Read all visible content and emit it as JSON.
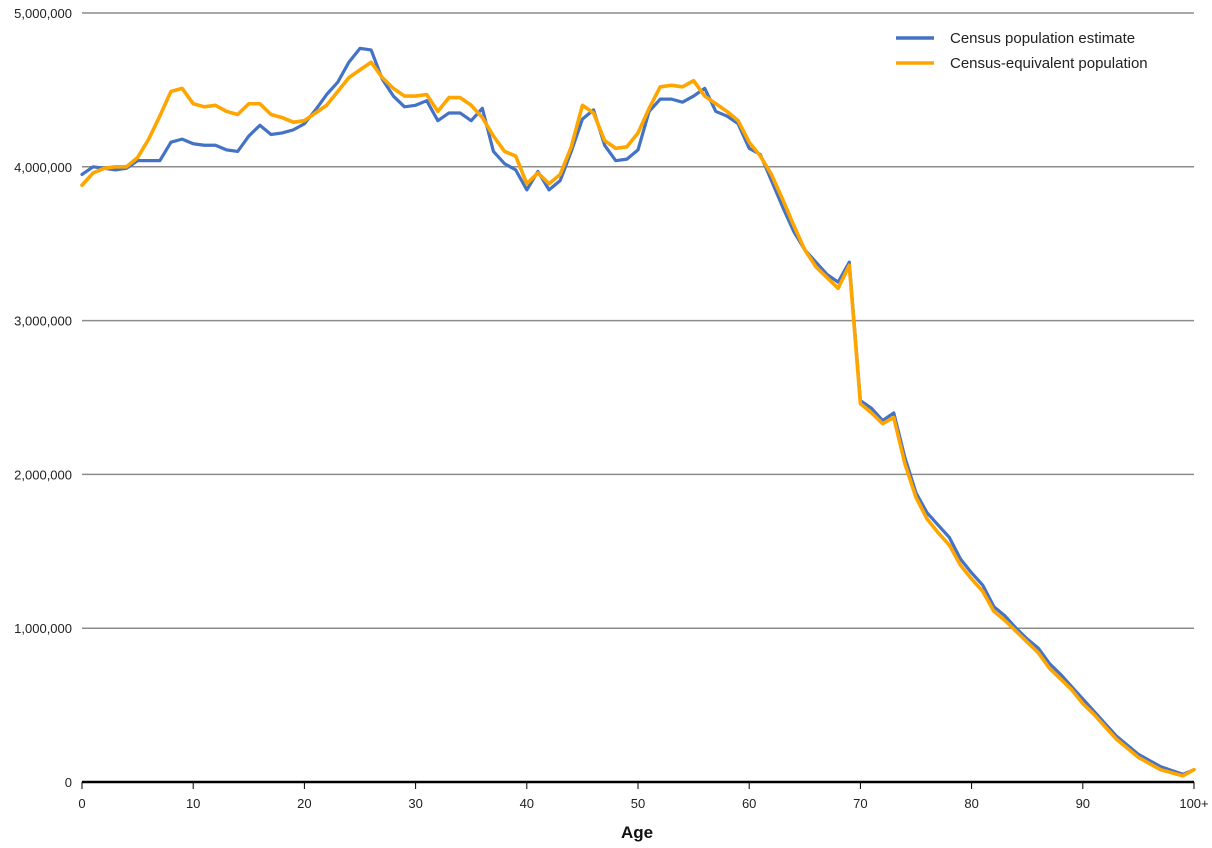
{
  "chart_data": {
    "type": "line",
    "xlabel": "Age",
    "ylabel": "",
    "ylim": [
      0,
      5000000
    ],
    "xlim": [
      0,
      100
    ],
    "y_ticks": [
      0,
      1000000,
      2000000,
      3000000,
      4000000,
      5000000
    ],
    "y_tick_labels": [
      "0",
      "1,000,000",
      "2,000,000",
      "3,000,000",
      "4,000,000",
      "5,000,000"
    ],
    "x_ticks": [
      0,
      10,
      20,
      30,
      40,
      50,
      60,
      70,
      80,
      90,
      100
    ],
    "x_tick_labels": [
      "0",
      "10",
      "20",
      "30",
      "40",
      "50",
      "60",
      "70",
      "80",
      "90",
      "100+"
    ],
    "grid": "horizontal",
    "legend_position": "top-right",
    "x": [
      0,
      1,
      2,
      3,
      4,
      5,
      6,
      7,
      8,
      9,
      10,
      11,
      12,
      13,
      14,
      15,
      16,
      17,
      18,
      19,
      20,
      21,
      22,
      23,
      24,
      25,
      26,
      27,
      28,
      29,
      30,
      31,
      32,
      33,
      34,
      35,
      36,
      37,
      38,
      39,
      40,
      41,
      42,
      43,
      44,
      45,
      46,
      47,
      48,
      49,
      50,
      51,
      52,
      53,
      54,
      55,
      56,
      57,
      58,
      59,
      60,
      61,
      62,
      63,
      64,
      65,
      66,
      67,
      68,
      69,
      70,
      71,
      72,
      73,
      74,
      75,
      76,
      77,
      78,
      79,
      80,
      81,
      82,
      83,
      84,
      85,
      86,
      87,
      88,
      89,
      90,
      91,
      92,
      93,
      94,
      95,
      96,
      97,
      98,
      99,
      100
    ],
    "series": [
      {
        "name": "Census population estimate",
        "color": "#4472c4",
        "values": [
          3950000,
          4000000,
          3990000,
          3980000,
          3990000,
          4040000,
          4040000,
          4040000,
          4160000,
          4180000,
          4150000,
          4140000,
          4140000,
          4110000,
          4100000,
          4200000,
          4270000,
          4210000,
          4220000,
          4240000,
          4280000,
          4370000,
          4470000,
          4550000,
          4680000,
          4770000,
          4760000,
          4570000,
          4460000,
          4390000,
          4400000,
          4430000,
          4300000,
          4350000,
          4350000,
          4300000,
          4380000,
          4100000,
          4020000,
          3980000,
          3850000,
          3970000,
          3850000,
          3910000,
          4100000,
          4310000,
          4370000,
          4140000,
          4040000,
          4050000,
          4110000,
          4360000,
          4440000,
          4440000,
          4420000,
          4460000,
          4510000,
          4360000,
          4330000,
          4280000,
          4120000,
          4080000,
          3910000,
          3740000,
          3580000,
          3460000,
          3380000,
          3300000,
          3250000,
          3380000,
          2480000,
          2430000,
          2350000,
          2400000,
          2110000,
          1880000,
          1750000,
          1670000,
          1590000,
          1450000,
          1360000,
          1280000,
          1140000,
          1080000,
          1000000,
          930000,
          870000,
          770000,
          700000,
          620000,
          540000,
          460000,
          380000,
          300000,
          240000,
          180000,
          140000,
          100000,
          75000,
          50000,
          80000
        ]
      },
      {
        "name": "Census-equivalent population",
        "color": "#ffa500",
        "values": [
          3880000,
          3960000,
          3990000,
          4000000,
          4000000,
          4060000,
          4180000,
          4330000,
          4490000,
          4510000,
          4410000,
          4390000,
          4400000,
          4360000,
          4340000,
          4410000,
          4410000,
          4340000,
          4320000,
          4290000,
          4300000,
          4350000,
          4400000,
          4490000,
          4580000,
          4630000,
          4680000,
          4580000,
          4510000,
          4460000,
          4460000,
          4470000,
          4360000,
          4450000,
          4450000,
          4400000,
          4320000,
          4200000,
          4100000,
          4070000,
          3890000,
          3960000,
          3890000,
          3950000,
          4130000,
          4400000,
          4350000,
          4170000,
          4120000,
          4130000,
          4220000,
          4380000,
          4520000,
          4530000,
          4520000,
          4560000,
          4460000,
          4410000,
          4360000,
          4300000,
          4160000,
          4070000,
          3950000,
          3790000,
          3620000,
          3460000,
          3350000,
          3280000,
          3210000,
          3360000,
          2460000,
          2400000,
          2330000,
          2370000,
          2070000,
          1850000,
          1710000,
          1620000,
          1540000,
          1410000,
          1320000,
          1240000,
          1110000,
          1050000,
          980000,
          910000,
          840000,
          740000,
          670000,
          600000,
          510000,
          440000,
          360000,
          280000,
          220000,
          160000,
          120000,
          80000,
          60000,
          40000,
          80000
        ]
      }
    ]
  }
}
